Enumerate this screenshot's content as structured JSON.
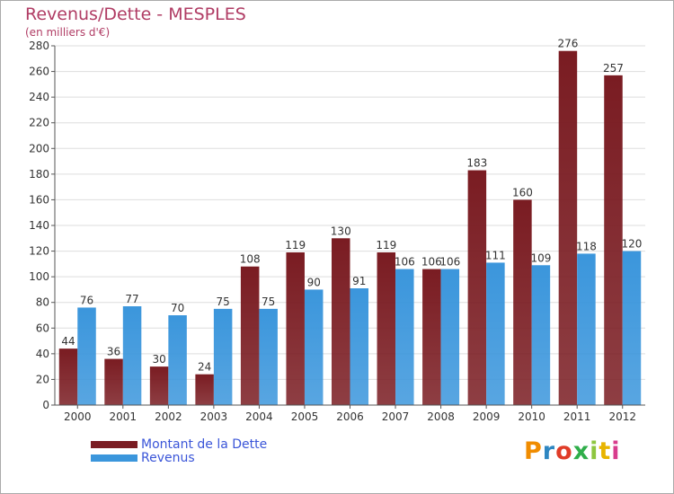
{
  "chart_data": {
    "type": "bar",
    "title": "Revenus/Dette - MESPLES",
    "subtitle": "(en milliers d'€)",
    "xlabel": "",
    "ylabel": "",
    "ylim": [
      0,
      280
    ],
    "yticks": [
      0,
      20,
      40,
      60,
      80,
      100,
      120,
      140,
      160,
      180,
      200,
      220,
      240,
      260,
      280
    ],
    "categories": [
      "2000",
      "2001",
      "2002",
      "2003",
      "2004",
      "2005",
      "2006",
      "2007",
      "2008",
      "2009",
      "2010",
      "2011",
      "2012"
    ],
    "series": [
      {
        "name": "Montant de la Dette",
        "color": "#7a1c22",
        "values": [
          44,
          36,
          30,
          24,
          108,
          119,
          130,
          119,
          106,
          183,
          160,
          276,
          257
        ]
      },
      {
        "name": "Revenus",
        "color": "#3b96dc",
        "values": [
          76,
          77,
          70,
          75,
          75,
          90,
          91,
          106,
          106,
          111,
          109,
          118,
          120
        ]
      }
    ],
    "grid": true,
    "legend": "bottom-left"
  },
  "logo": {
    "text": "Proxiti",
    "colors": [
      "#f08c00",
      "#2e86c1",
      "#e03c28",
      "#2fae4a",
      "#8ec63f",
      "#e8b400",
      "#d83c8c"
    ]
  }
}
